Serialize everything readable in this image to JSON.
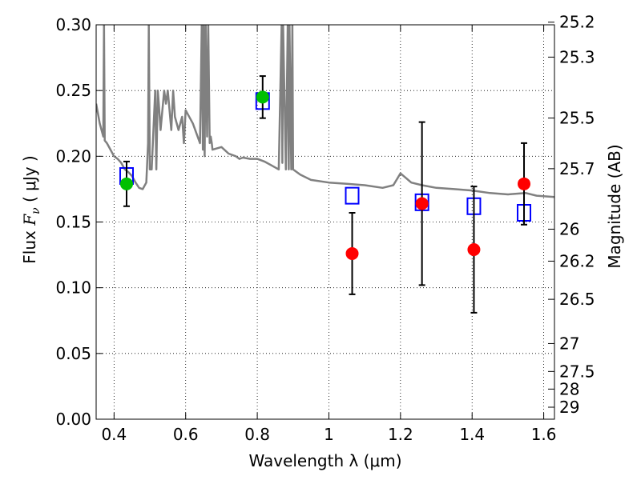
{
  "chart_data": {
    "type": "scatter",
    "xlabel": "Wavelength  λ (μm)",
    "ylabel": "Flux  Fν  ( μJy )",
    "ylabel_parts": {
      "pre": "Flux  ",
      "symbol": "F",
      "subscript": "ν",
      "post": "  ( μJy )"
    },
    "y2label": "Magnitude (AB)",
    "xlim": [
      0.35,
      1.63
    ],
    "ylim": [
      0.0,
      0.3
    ],
    "grid": true,
    "x_ticks": [
      0.4,
      0.6,
      0.8,
      1.0,
      1.2,
      1.4,
      1.6
    ],
    "x_tick_labels": [
      "0.4",
      "0.6",
      "0.8",
      "1",
      "1.2",
      "1.4",
      "1.6"
    ],
    "y_ticks": [
      0.0,
      0.05,
      0.1,
      0.15,
      0.2,
      0.25,
      0.3
    ],
    "y_tick_labels": [
      "0.00",
      "0.05",
      "0.10",
      "0.15",
      "0.20",
      "0.25",
      "0.30"
    ],
    "y2_ticks": [
      25.2,
      25.3,
      25.5,
      25.7,
      26,
      26.2,
      26.5,
      27,
      27.5,
      28,
      29
    ],
    "y2_tick_labels": [
      "25.2",
      "25.3",
      "25.5",
      "25.7",
      "26",
      "26.2",
      "26.5",
      "27",
      "27.5",
      "28",
      "29"
    ],
    "model_spectrum": {
      "color": "#808080",
      "x": [
        0.35,
        0.36,
        0.37,
        0.372,
        0.374,
        0.38,
        0.39,
        0.4,
        0.41,
        0.42,
        0.43,
        0.44,
        0.45,
        0.46,
        0.47,
        0.48,
        0.49,
        0.495,
        0.497,
        0.5,
        0.505,
        0.51,
        0.515,
        0.518,
        0.52,
        0.522,
        0.525,
        0.53,
        0.54,
        0.545,
        0.55,
        0.56,
        0.565,
        0.57,
        0.58,
        0.59,
        0.595,
        0.6,
        0.62,
        0.64,
        0.645,
        0.648,
        0.65,
        0.653,
        0.656,
        0.66,
        0.663,
        0.667,
        0.67,
        0.673,
        0.675,
        0.7,
        0.72,
        0.74,
        0.75,
        0.76,
        0.78,
        0.8,
        0.82,
        0.84,
        0.86,
        0.868,
        0.87,
        0.872,
        0.88,
        0.885,
        0.888,
        0.89,
        0.895,
        0.898,
        0.9,
        0.92,
        0.95,
        1.0,
        1.05,
        1.1,
        1.15,
        1.18,
        1.2,
        1.23,
        1.26,
        1.3,
        1.35,
        1.4,
        1.45,
        1.5,
        1.55,
        1.58,
        1.63
      ],
      "y": [
        0.24,
        0.225,
        0.215,
        0.3,
        0.212,
        0.21,
        0.205,
        0.2,
        0.198,
        0.195,
        0.19,
        0.188,
        0.185,
        0.18,
        0.176,
        0.175,
        0.18,
        0.21,
        0.3,
        0.19,
        0.19,
        0.22,
        0.25,
        0.19,
        0.22,
        0.25,
        0.24,
        0.22,
        0.25,
        0.24,
        0.25,
        0.22,
        0.25,
        0.23,
        0.22,
        0.23,
        0.21,
        0.235,
        0.225,
        0.21,
        0.3,
        0.205,
        0.3,
        0.2,
        0.3,
        0.215,
        0.3,
        0.21,
        0.215,
        0.21,
        0.205,
        0.207,
        0.202,
        0.2,
        0.198,
        0.199,
        0.198,
        0.198,
        0.196,
        0.193,
        0.19,
        0.3,
        0.195,
        0.3,
        0.19,
        0.3,
        0.19,
        0.3,
        0.19,
        0.3,
        0.19,
        0.186,
        0.182,
        0.18,
        0.179,
        0.178,
        0.176,
        0.178,
        0.187,
        0.18,
        0.178,
        0.176,
        0.175,
        0.174,
        0.172,
        0.171,
        0.172,
        0.17,
        0.169
      ]
    },
    "series": [
      {
        "marker": "square-open",
        "color": "#0000ff",
        "x": [
          0.435,
          0.815,
          1.065,
          1.26,
          1.405,
          1.545
        ],
        "y": [
          0.185,
          0.242,
          0.17,
          0.165,
          0.162,
          0.157
        ]
      },
      {
        "marker": "circle",
        "color": "#ff0000",
        "x": [
          1.065,
          1.26,
          1.405,
          1.545
        ],
        "y": [
          0.126,
          0.164,
          0.129,
          0.179
        ],
        "err": [
          0.031,
          0.062,
          0.048,
          0.031
        ]
      },
      {
        "marker": "circle",
        "color": "#00c000",
        "x": [
          0.435,
          0.815
        ],
        "y": [
          0.179,
          0.245
        ],
        "err": [
          0.017,
          0.016
        ]
      }
    ]
  }
}
